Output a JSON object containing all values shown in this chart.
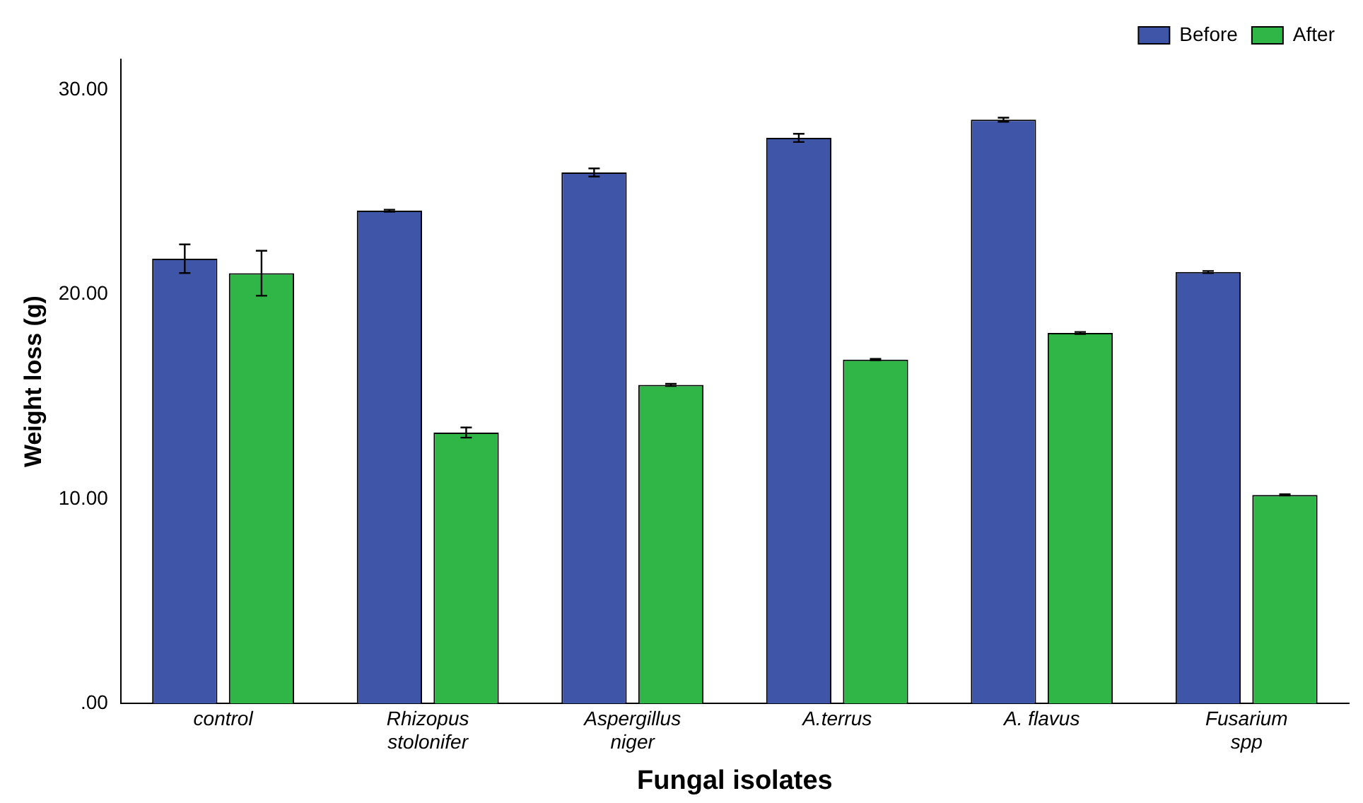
{
  "chart_data": {
    "type": "bar",
    "xlabel": "Fungal isolates",
    "ylabel": "Weight loss (g)",
    "categories": [
      "control",
      "Rhizopus\nstolonifer",
      "Aspergillus\nniger",
      "A.terrus",
      "A. flavus",
      "Fusarium\nspp"
    ],
    "series": [
      {
        "name": "Before",
        "color": "#3f56a8",
        "values": [
          21.75,
          24.1,
          25.97,
          27.66,
          28.55,
          21.1
        ],
        "errors": [
          0.7,
          0.05,
          0.2,
          0.2,
          0.1,
          0.05
        ]
      },
      {
        "name": "After",
        "color": "#30b646",
        "values": [
          21.04,
          13.25,
          15.58,
          16.82,
          18.12,
          10.2
        ],
        "errors": [
          1.1,
          0.25,
          0.05,
          0.03,
          0.05,
          0.03
        ]
      }
    ],
    "ylim": [
      0,
      31.5
    ],
    "yticks": [
      {
        "value": 0,
        "label": ".00"
      },
      {
        "value": 10,
        "label": "10.00"
      },
      {
        "value": 20,
        "label": "20.00"
      },
      {
        "value": 30,
        "label": "30.00"
      }
    ],
    "grid": false,
    "legend": "top right"
  }
}
